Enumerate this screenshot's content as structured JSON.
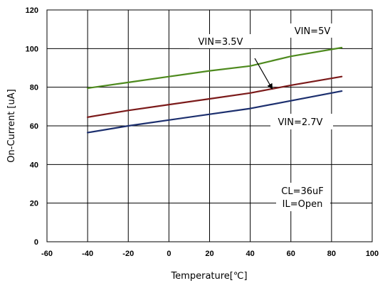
{
  "chart_data": {
    "type": "line",
    "title": "",
    "xlabel": "Temperature[℃]",
    "ylabel": "On-Current [uA]",
    "xlim": [
      -60,
      100
    ],
    "ylim": [
      0,
      120
    ],
    "xticks": [
      -60,
      -40,
      -20,
      0,
      20,
      40,
      60,
      80,
      100
    ],
    "yticks": [
      0,
      20,
      40,
      60,
      80,
      100,
      120
    ],
    "grid": true,
    "legend": "none",
    "series": [
      {
        "name": "VIN=5V",
        "color": "#4e8a1e",
        "x": [
          -40,
          -20,
          0,
          20,
          40,
          60,
          85
        ],
        "y": [
          79.5,
          82.5,
          85.5,
          88.5,
          91,
          96,
          100.5
        ]
      },
      {
        "name": "VIN=3.5V",
        "color": "#7b1a1a",
        "x": [
          -40,
          -20,
          0,
          20,
          40,
          60,
          85
        ],
        "y": [
          64.5,
          68,
          71,
          74,
          77,
          81,
          85.5
        ]
      },
      {
        "name": "VIN=2.7V",
        "color": "#1c2f6e",
        "x": [
          -40,
          -20,
          0,
          20,
          40,
          60,
          85
        ],
        "y": [
          56.5,
          60,
          63,
          66,
          69,
          73,
          78
        ]
      }
    ],
    "annotations": {
      "vin5": "VIN=5V",
      "vin35": "VIN=3.5V",
      "vin27": "VIN=2.7V",
      "cl": "CL=36uF",
      "il": "IL=Open"
    }
  }
}
